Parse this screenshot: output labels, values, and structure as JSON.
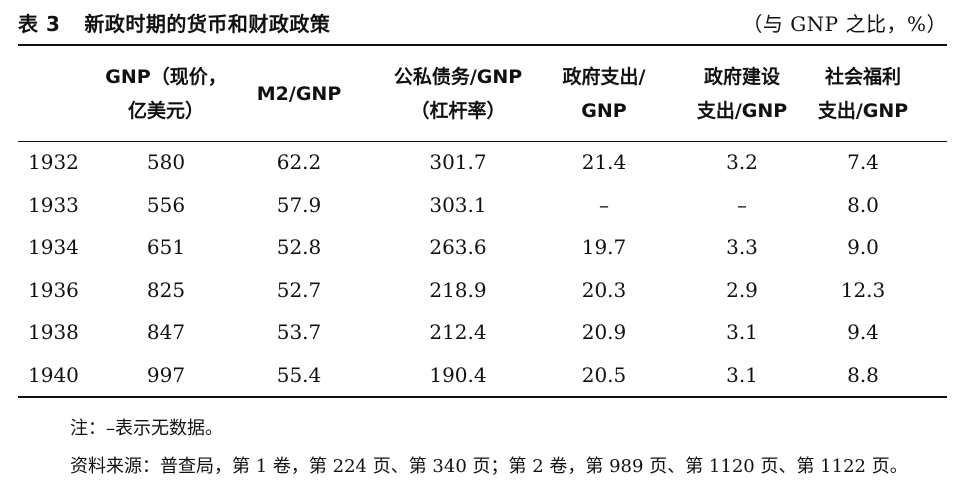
{
  "title": {
    "label": "表 3",
    "text": "新政时期的货币和财政政策",
    "unit": "（与 GNP 之比，%）"
  },
  "table": {
    "headers": [
      {
        "line1": "",
        "line2": ""
      },
      {
        "line1": "GNP（现价，",
        "line2": "亿美元）"
      },
      {
        "line1": "M2/GNP",
        "line2": ""
      },
      {
        "line1": "公私债务/GNP",
        "line2": "（杠杆率）"
      },
      {
        "line1": "政府支出/",
        "line2": "GNP"
      },
      {
        "line1": "政府建设",
        "line2": "支出/GNP"
      },
      {
        "line1": "社会福利",
        "line2": "支出/GNP"
      }
    ],
    "rows": [
      [
        "1932",
        "580",
        "62.2",
        "301.7",
        "21.4",
        "3.2",
        "7.4"
      ],
      [
        "1933",
        "556",
        "57.9",
        "303.1",
        "–",
        "–",
        "8.0"
      ],
      [
        "1934",
        "651",
        "52.8",
        "263.6",
        "19.7",
        "3.3",
        "9.0"
      ],
      [
        "1936",
        "825",
        "52.7",
        "218.9",
        "20.3",
        "2.9",
        "12.3"
      ],
      [
        "1938",
        "847",
        "53.7",
        "212.4",
        "20.9",
        "3.1",
        "9.4"
      ],
      [
        "1940",
        "997",
        "55.4",
        "190.4",
        "20.5",
        "3.1",
        "8.8"
      ]
    ]
  },
  "notes": {
    "note": "注：–表示无数据。",
    "source": "资料来源：普查局，第 1 卷，第 224 页、第 340 页；第 2 卷，第 989 页、第 1120 页、第 1122 页。"
  }
}
